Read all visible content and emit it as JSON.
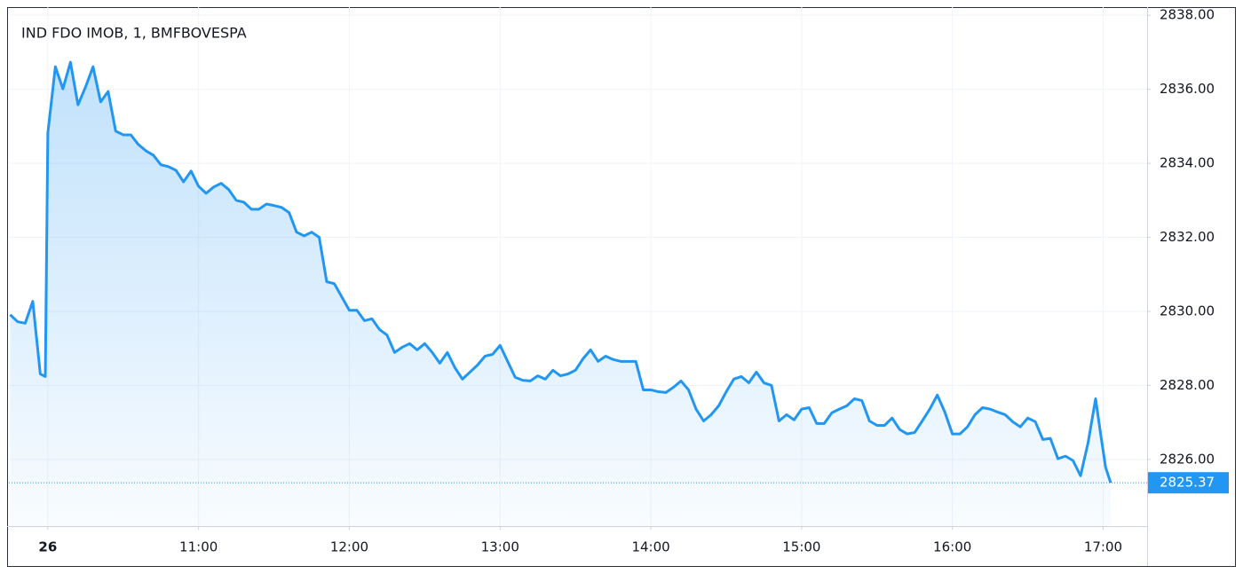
{
  "chart_data": {
    "type": "area",
    "title": "IND FDO IMOB, 1, BMFBOVESPA",
    "color": "#2196f3",
    "grid": true,
    "x": [
      585,
      588,
      591,
      594,
      597,
      599,
      600,
      603,
      606,
      609,
      612,
      615,
      618,
      621,
      624,
      627,
      630,
      633,
      636,
      639,
      642,
      645,
      648,
      651,
      654,
      657,
      660,
      663,
      666,
      669,
      672,
      675,
      678,
      681,
      684,
      687,
      690,
      693,
      696,
      699,
      702,
      705,
      708,
      711,
      714,
      717,
      720,
      723,
      726,
      729,
      732,
      735,
      738,
      741,
      744,
      747,
      750,
      753,
      756,
      759,
      762,
      765,
      768,
      771,
      774,
      777,
      780,
      783,
      786,
      789,
      792,
      795,
      798,
      801,
      804,
      807,
      810,
      813,
      816,
      819,
      822,
      825,
      828,
      831,
      834,
      837,
      840,
      843,
      846,
      849,
      852,
      855,
      858,
      861,
      864,
      867,
      870,
      873,
      876,
      879,
      882,
      885,
      888,
      891,
      894,
      897,
      900,
      903,
      906,
      909,
      912,
      915,
      918,
      921,
      924,
      927,
      930,
      933,
      936,
      939,
      942,
      945,
      948,
      951,
      954,
      957,
      960,
      963,
      966,
      969,
      972,
      975,
      978,
      981,
      984,
      987,
      990,
      993,
      996,
      999,
      1002,
      1005,
      1008,
      1011,
      1014,
      1017,
      1019,
      1021,
      1023
    ],
    "values": [
      2829.91,
      2829.72,
      2829.68,
      2830.27,
      2828.31,
      2828.24,
      2834.82,
      2836.61,
      2836.01,
      2836.73,
      2835.58,
      2836.06,
      2836.61,
      2835.66,
      2835.94,
      2834.87,
      2834.77,
      2834.77,
      2834.51,
      2834.34,
      2834.22,
      2833.96,
      2833.91,
      2833.81,
      2833.5,
      2833.79,
      2833.38,
      2833.19,
      2833.36,
      2833.46,
      2833.29,
      2833.0,
      2832.95,
      2832.76,
      2832.76,
      2832.9,
      2832.86,
      2832.81,
      2832.67,
      2832.14,
      2832.04,
      2832.14,
      2832.0,
      2830.8,
      2830.75,
      2830.39,
      2830.03,
      2830.03,
      2829.75,
      2829.8,
      2829.51,
      2829.36,
      2828.89,
      2829.03,
      2829.13,
      2828.96,
      2829.13,
      2828.89,
      2828.6,
      2828.89,
      2828.48,
      2828.17,
      2828.36,
      2828.55,
      2828.79,
      2828.84,
      2829.08,
      2828.65,
      2828.22,
      2828.14,
      2828.12,
      2828.26,
      2828.17,
      2828.41,
      2828.26,
      2828.31,
      2828.41,
      2828.72,
      2828.96,
      2828.65,
      2828.79,
      2828.7,
      2828.65,
      2828.65,
      2828.65,
      2827.88,
      2827.88,
      2827.83,
      2827.81,
      2827.95,
      2828.12,
      2827.88,
      2827.36,
      2827.04,
      2827.21,
      2827.45,
      2827.83,
      2828.17,
      2828.24,
      2828.07,
      2828.36,
      2828.07,
      2828.0,
      2827.04,
      2827.21,
      2827.07,
      2827.36,
      2827.4,
      2826.97,
      2826.97,
      2827.26,
      2827.36,
      2827.45,
      2827.64,
      2827.59,
      2827.04,
      2826.92,
      2826.92,
      2827.12,
      2826.81,
      2826.69,
      2826.73,
      2827.04,
      2827.36,
      2827.74,
      2827.28,
      2826.69,
      2826.69,
      2826.88,
      2827.21,
      2827.4,
      2827.36,
      2827.28,
      2827.21,
      2827.02,
      2826.88,
      2827.12,
      2827.02,
      2826.54,
      2826.57,
      2826.02,
      2826.09,
      2825.97,
      2825.56,
      2826.45,
      2827.64,
      2826.69,
      2825.78,
      2825.37
    ],
    "xlim": [
      584.5,
      1037.5
    ],
    "xticks": [
      {
        "value": 600,
        "label": "26"
      },
      {
        "value": 660,
        "label": "11:00"
      },
      {
        "value": 720,
        "label": "12:00"
      },
      {
        "value": 780,
        "label": "13:00"
      },
      {
        "value": 840,
        "label": "14:00"
      },
      {
        "value": 900,
        "label": "15:00"
      },
      {
        "value": 960,
        "label": "16:00"
      },
      {
        "value": 1020,
        "label": "17:00"
      }
    ],
    "ylim": [
      2824.2,
      2838.22
    ],
    "yticks": [
      {
        "value": 2826,
        "label": "2826.00"
      },
      {
        "value": 2828,
        "label": "2828.00"
      },
      {
        "value": 2830,
        "label": "2830.00"
      },
      {
        "value": 2832,
        "label": "2832.00"
      },
      {
        "value": 2834,
        "label": "2834.00"
      },
      {
        "value": 2836,
        "label": "2836.00"
      },
      {
        "value": 2838,
        "label": "2838.00"
      }
    ]
  }
}
